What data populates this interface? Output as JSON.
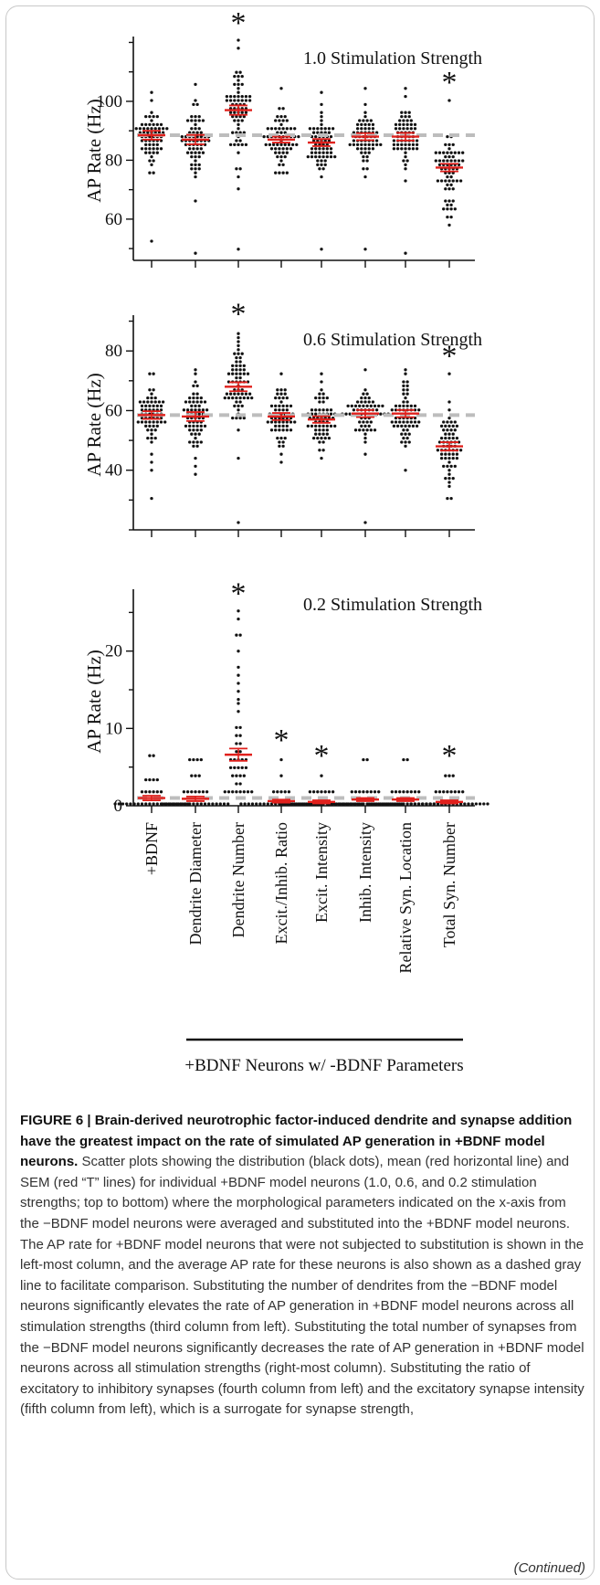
{
  "figure": {
    "caption_label": "FIGURE 6 | Brain-derived neurotrophic factor-induced dendrite and synapse addition have the greatest impact on the rate of simulated AP generation in +BDNF model neurons.",
    "caption_text": "Scatter plots showing the distribution (black dots), mean (red horizontal line) and SEM (red “T” lines) for individual +BDNF model neurons (1.0, 0.6, and 0.2 stimulation strengths; top to bottom) where the morphological parameters indicated on the x-axis from the −BDNF model neurons were averaged and substituted into the +BDNF model neurons. The AP rate for +BDNF model neurons that were not subjected to substitution is shown in the left-most column, and the average AP rate for these neurons is also shown as a dashed gray line to facilitate comparison. Substituting the number of dendrites from the −BDNF model neurons significantly elevates the rate of AP generation in +BDNF model neurons across all stimulation strengths (third column from left). Substituting the total number of synapses from the −BDNF model neurons significantly decreases the rate of AP generation in +BDNF model neurons across all stimulation strengths (right-most column). Substituting the ratio of excitatory to inhibitory synapses (fourth column from left) and the excitatory synapse intensity (fifth column from left), which is a surrogate for synapse strength,",
    "continued": "(Continued)",
    "group_label": "+BDNF Neurons w/ -BDNF Parameters",
    "colors": {
      "mean_sem": "#e0201c",
      "dots": "#111111",
      "reference": "#bdbdbd",
      "axis": "#111111"
    }
  },
  "chart_data": [
    {
      "type": "scatter",
      "title": "1.0 Stimulation Strength",
      "ylabel": "AP  Rate (Hz)",
      "ylim": [
        46,
        122
      ],
      "yticks": [
        60,
        80,
        100
      ],
      "reference_line": 88.5,
      "categories": [
        "+BDNF",
        "Dendrite Diameter",
        "Dendrite Number",
        "Excit./Inhib. Ratio",
        "Excit. Intensity",
        "Inhib. Intensity",
        "Relative Syn. Location",
        "Total Syn. Number"
      ],
      "significant": [
        false,
        false,
        true,
        false,
        false,
        false,
        false,
        true
      ],
      "mean": [
        88.5,
        87,
        97,
        87,
        86,
        88,
        88,
        77.5
      ],
      "sem": [
        1.5,
        1.6,
        1.6,
        1.0,
        1.2,
        1.2,
        1.3,
        1.3
      ],
      "range": [
        [
          76,
          103
        ],
        [
          66,
          106
        ],
        [
          74,
          121
        ],
        [
          76,
          105
        ],
        [
          74,
          103
        ],
        [
          75,
          104
        ],
        [
          73,
          105
        ],
        [
          58,
          100
        ]
      ],
      "n": [
        60,
        62,
        64,
        60,
        60,
        60,
        60,
        64
      ],
      "outliers": [
        [
          53
        ],
        [
          48
        ],
        [
          50,
          70
        ],
        [],
        [
          50
        ],
        [
          50
        ],
        [
          48
        ],
        []
      ]
    },
    {
      "type": "scatter",
      "title": "0.6 Stimulation Strength",
      "ylabel": "AP  Rate (Hz)",
      "ylim": [
        20,
        92
      ],
      "yticks": [
        40,
        60,
        80
      ],
      "reference_line": 58.5,
      "categories": [
        "+BDNF",
        "Dendrite Diameter",
        "Dendrite Number",
        "Excit./Inhib. Ratio",
        "Excit. Intensity",
        "Inhib. Intensity",
        "Relative Syn. Location",
        "Total Syn. Number"
      ],
      "significant": [
        false,
        false,
        true,
        false,
        false,
        false,
        false,
        true
      ],
      "mean": [
        58.5,
        58,
        68,
        58,
        57,
        59,
        59,
        48
      ],
      "sem": [
        1.3,
        1.5,
        1.5,
        1.2,
        1.1,
        1.2,
        1.2,
        1.4
      ],
      "range": [
        [
          40,
          73
        ],
        [
          38,
          74
        ],
        [
          44,
          86
        ],
        [
          42,
          72
        ],
        [
          44,
          72
        ],
        [
          45,
          74
        ],
        [
          40,
          74
        ],
        [
          30,
          72
        ]
      ],
      "n": [
        60,
        62,
        64,
        60,
        60,
        60,
        60,
        64
      ],
      "outliers": [
        [
          30
        ],
        [],
        [
          22
        ],
        [],
        [],
        [
          22
        ],
        [],
        []
      ]
    },
    {
      "type": "scatter",
      "title": "0.2 Stimulation Strength",
      "ylabel": "AP  Rate (Hz)",
      "ylim": [
        0,
        28
      ],
      "yticks": [
        0,
        10,
        20
      ],
      "reference_line": 1.0,
      "categories": [
        "+BDNF",
        "Dendrite Diameter",
        "Dendrite Number",
        "Excit./Inhib. Ratio",
        "Excit. Intensity",
        "Inhib. Intensity",
        "Relative Syn. Location",
        "Total Syn. Number"
      ],
      "significant": [
        false,
        false,
        true,
        true,
        true,
        false,
        false,
        true
      ],
      "mean": [
        1.0,
        0.9,
        6.6,
        0.6,
        0.5,
        0.8,
        0.8,
        0.5
      ],
      "sem": [
        0.3,
        0.3,
        0.8,
        0.2,
        0.2,
        0.2,
        0.2,
        0.2
      ],
      "columns_values": [
        [
          0,
          0,
          0,
          0,
          0,
          0,
          0,
          0,
          0,
          0,
          0,
          0,
          0,
          0,
          0,
          0,
          0,
          0,
          0,
          0,
          2,
          2,
          2,
          2,
          2,
          2,
          3.3,
          3.3,
          3.3,
          3.3,
          6.7,
          6.7
        ],
        [
          0,
          0,
          0,
          0,
          0,
          0,
          0,
          0,
          0,
          0,
          0,
          0,
          0,
          0,
          0,
          0,
          0,
          0,
          2,
          2,
          2,
          2,
          2,
          2,
          2,
          4,
          4,
          4,
          6,
          6,
          6,
          6
        ],
        [
          2,
          2,
          2,
          2,
          2,
          2,
          2,
          2,
          3,
          3,
          4,
          4,
          4,
          4,
          5,
          5,
          5,
          5,
          5,
          6,
          6,
          6,
          6,
          6,
          7,
          7,
          8,
          8,
          9,
          9,
          10,
          10,
          12,
          13,
          14,
          15,
          16,
          17,
          18,
          20,
          22,
          22,
          24,
          25
        ],
        [
          0,
          0,
          0,
          0,
          0,
          0,
          0,
          0,
          0,
          0,
          0,
          0,
          0,
          0,
          0,
          0,
          0,
          0,
          0,
          0,
          0,
          0,
          2,
          2,
          2,
          2,
          2,
          4,
          6
        ],
        [
          0,
          0,
          0,
          0,
          0,
          0,
          0,
          0,
          0,
          0,
          0,
          0,
          0,
          0,
          0,
          0,
          0,
          0,
          0,
          0,
          0,
          0,
          2,
          2,
          2,
          2,
          2,
          2,
          2,
          4
        ],
        [
          0,
          0,
          0,
          0,
          0,
          0,
          0,
          0,
          0,
          0,
          0,
          0,
          0,
          0,
          0,
          0,
          0,
          0,
          0,
          0,
          2,
          2,
          2,
          2,
          2,
          2,
          2,
          2,
          6,
          6
        ],
        [
          0,
          0,
          0,
          0,
          0,
          0,
          0,
          0,
          0,
          0,
          0,
          0,
          0,
          0,
          0,
          0,
          0,
          0,
          0,
          0,
          2,
          2,
          2,
          2,
          2,
          2,
          2,
          2,
          6,
          6
        ],
        [
          0,
          0,
          0,
          0,
          0,
          0,
          0,
          0,
          0,
          0,
          0,
          0,
          0,
          0,
          0,
          0,
          0,
          0,
          0,
          0,
          0,
          2,
          2,
          2,
          2,
          2,
          2,
          2,
          2,
          4,
          4,
          4
        ]
      ]
    }
  ]
}
